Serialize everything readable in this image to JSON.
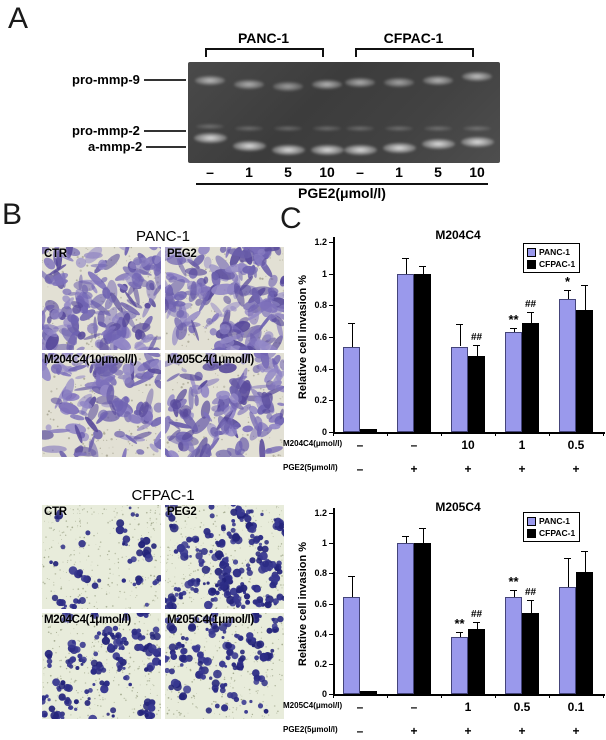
{
  "panels": {
    "a": {
      "label": "A",
      "band_labels": [
        "pro-mmp-9",
        "pro-mmp-2",
        "a-mmp-2"
      ],
      "group_labels": [
        "PANC-1",
        "CFPAC-1"
      ],
      "lane_labels": [
        "–",
        "1",
        "5",
        "10",
        "–",
        "1",
        "5",
        "10"
      ],
      "xaxis_label": "PGE2(μmol/l)"
    },
    "b": {
      "label": "B",
      "panels": [
        {
          "title": "PANC-1",
          "quadrants": [
            "CTR",
            "PEG2",
            "M204C4(10μmol/l)",
            "M205C4(1μmol/l)"
          ]
        },
        {
          "title": "CFPAC-1",
          "quadrants": [
            "CTR",
            "PEG2",
            "M204C4(1μmol/l)",
            "M205C4(1μmol/l)"
          ]
        }
      ]
    },
    "c": {
      "label": "C"
    }
  },
  "chart_data": [
    {
      "type": "bar",
      "title": "M204C4",
      "ylabel": "Relative cell invasion %",
      "ylim": [
        0,
        1.2
      ],
      "yticks": [
        0,
        0.2,
        0.4,
        0.6,
        0.8,
        1,
        1.2
      ],
      "grid": false,
      "legend_position": "top-right",
      "legend": [
        "PANC-1",
        "CFPAC-1"
      ],
      "colors": {
        "PANC-1": "#9a99ec",
        "CFPAC-1": "#000000"
      },
      "row_labels": [
        "M204C4(μmol/l)",
        "PGE2(5μmol/l)"
      ],
      "row_values": [
        [
          "–",
          "–",
          "10",
          "1",
          "0.5"
        ],
        [
          "–",
          "+",
          "+",
          "+",
          "+"
        ]
      ],
      "series": [
        {
          "name": "PANC-1",
          "values": [
            0.54,
            1.0,
            0.54,
            0.63,
            0.84
          ],
          "errors": [
            0.15,
            0.1,
            0.14,
            0.03,
            0.06
          ],
          "markers": [
            "",
            "",
            "",
            "**",
            "*"
          ]
        },
        {
          "name": "CFPAC-1",
          "values": [
            0.02,
            1.0,
            0.48,
            0.69,
            0.77
          ],
          "errors": [
            0.0,
            0.05,
            0.07,
            0.07,
            0.16
          ],
          "markers": [
            "",
            "",
            "##",
            "##",
            ""
          ]
        }
      ]
    },
    {
      "type": "bar",
      "title": "M205C4",
      "ylabel": "Relative cell invasion %",
      "ylim": [
        0,
        1.2
      ],
      "yticks": [
        0,
        0.2,
        0.4,
        0.6,
        0.8,
        1,
        1.2
      ],
      "grid": false,
      "legend_position": "top-right",
      "legend": [
        "PANC-1",
        "CFPAC-1"
      ],
      "colors": {
        "PANC-1": "#9a99ec",
        "CFPAC-1": "#000000"
      },
      "row_labels": [
        "M205C4(μmol/l)",
        "PGE2(5μmol/l)"
      ],
      "row_values": [
        [
          "–",
          "–",
          "1",
          "0.5",
          "0.1"
        ],
        [
          "–",
          "+",
          "+",
          "+",
          "+"
        ]
      ],
      "series": [
        {
          "name": "PANC-1",
          "values": [
            0.64,
            1.0,
            0.38,
            0.64,
            0.71
          ],
          "errors": [
            0.14,
            0.05,
            0.03,
            0.05,
            0.19
          ],
          "markers": [
            "",
            "",
            "**",
            "**",
            ""
          ]
        },
        {
          "name": "CFPAC-1",
          "values": [
            0.02,
            1.0,
            0.43,
            0.54,
            0.81
          ],
          "errors": [
            0.0,
            0.1,
            0.05,
            0.08,
            0.14
          ],
          "markers": [
            "",
            "",
            "##",
            "##",
            ""
          ]
        }
      ]
    }
  ]
}
